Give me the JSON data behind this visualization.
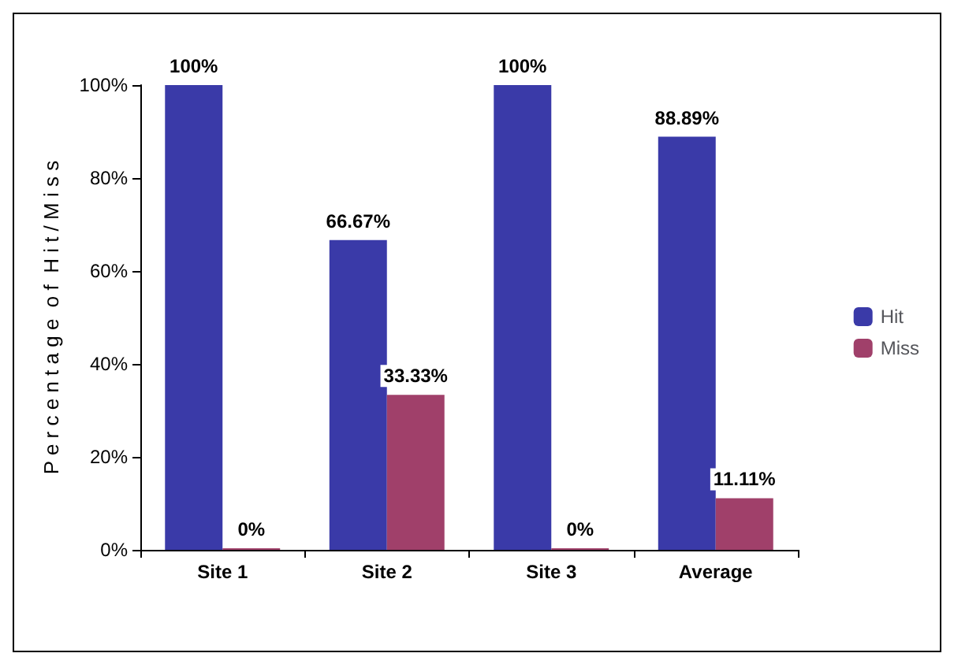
{
  "chart_data": {
    "type": "bar",
    "ylabel": "P e r c e n t a g e  o f  H i t / M i s s",
    "categories": [
      "Site 1",
      "Site 2",
      "Site 3",
      "Average"
    ],
    "series": [
      {
        "name": "Hit",
        "color": "#3a3aa8",
        "values": [
          100,
          66.67,
          100,
          88.89
        ],
        "value_labels": [
          "100%",
          "66.67%",
          "100%",
          "88.89%"
        ]
      },
      {
        "name": "Miss",
        "color": "#a0406a",
        "values": [
          0,
          33.33,
          0,
          11.11
        ],
        "value_labels": [
          "0%",
          "33.33%",
          "0%",
          "11.11%"
        ]
      }
    ],
    "ylim": [
      0,
      100
    ],
    "yticks": [
      {
        "value": 0,
        "label": "0%"
      },
      {
        "value": 20,
        "label": "20%"
      },
      {
        "value": 40,
        "label": "40%"
      },
      {
        "value": 60,
        "label": "60%"
      },
      {
        "value": 80,
        "label": "80%"
      },
      {
        "value": 100,
        "label": "100%"
      }
    ],
    "grid": false,
    "legend": "right"
  }
}
